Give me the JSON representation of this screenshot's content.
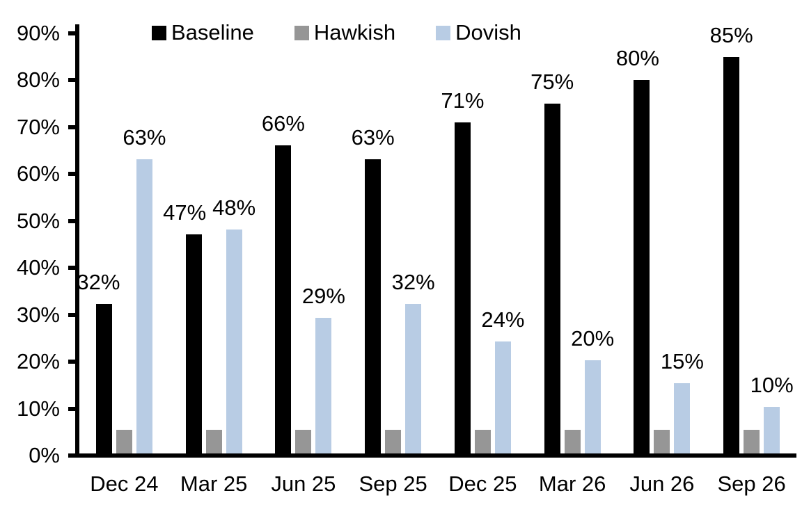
{
  "chart_data": {
    "type": "bar",
    "title": "",
    "categories": [
      "Dec 24",
      "Mar 25",
      "Jun 25",
      "Sep 25",
      "Dec 25",
      "Mar 26",
      "Jun 26",
      "Sep 26"
    ],
    "series": [
      {
        "name": "Baseline",
        "color": "#000000",
        "values": [
          32,
          47,
          66,
          63,
          71,
          75,
          80,
          85
        ],
        "data_labels": [
          "32%",
          "47%",
          "66%",
          "63%",
          "71%",
          "75%",
          "80%",
          "85%"
        ],
        "label_dx": [
          -8,
          -13,
          0,
          0,
          0,
          0,
          -6,
          0
        ]
      },
      {
        "name": "Hawkish",
        "color": "#969696",
        "values": [
          5,
          5,
          5,
          5,
          5,
          5,
          5,
          5
        ],
        "data_labels": null,
        "label_dx": null
      },
      {
        "name": "Dovish",
        "color": "#B8CCE4",
        "values": [
          63,
          48,
          29,
          32,
          24,
          20,
          15,
          10
        ],
        "data_labels": [
          "63%",
          "48%",
          "29%",
          "32%",
          "24%",
          "20%",
          "15%",
          "10%"
        ],
        "label_dx": [
          0,
          0,
          0,
          0,
          0,
          0,
          0,
          0
        ]
      }
    ],
    "ylim": [
      0,
      90
    ],
    "yticks": [
      {
        "value": 0,
        "label": "0%"
      },
      {
        "value": 10,
        "label": "10%"
      },
      {
        "value": 20,
        "label": "20%"
      },
      {
        "value": 30,
        "label": "30%"
      },
      {
        "value": 40,
        "label": "40%"
      },
      {
        "value": 50,
        "label": "50%"
      },
      {
        "value": 60,
        "label": "60%"
      },
      {
        "value": 70,
        "label": "70%"
      },
      {
        "value": 80,
        "label": "80%"
      },
      {
        "value": 90,
        "label": "90%"
      }
    ],
    "xlabel": "",
    "ylabel": "",
    "legend_position": "top",
    "grid": false,
    "background_color": "#ffffff",
    "axis_color": "#000000"
  }
}
